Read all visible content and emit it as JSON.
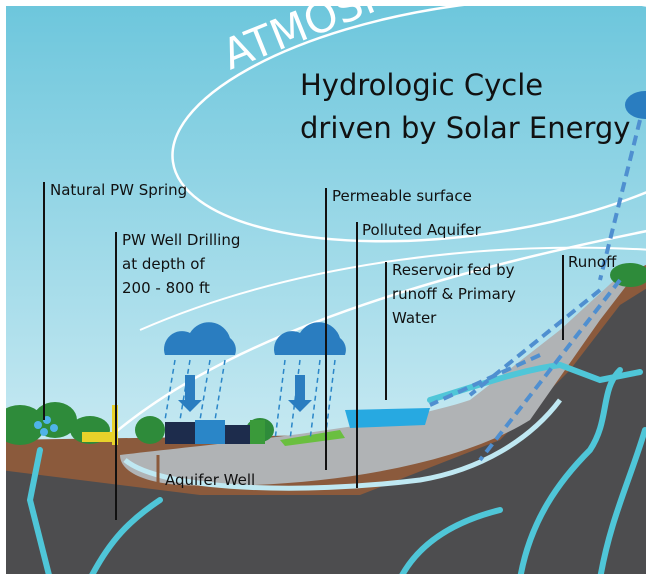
{
  "atmosphere": "ATMOSPH",
  "title": {
    "lines": [
      "Hydrologic Cycle",
      "driven by Solar Energy"
    ]
  },
  "labels": [
    {
      "lines": [
        "Natural PW Spring"
      ]
    },
    {
      "lines": [
        "PW Well Drilling",
        "at depth of",
        "200 - 800 ft"
      ]
    },
    {
      "lines": [
        "Permeable surface"
      ]
    },
    {
      "lines": [
        "Polluted Aquifer"
      ]
    },
    {
      "lines": [
        "Reservoir fed by",
        "runoff & Primary",
        "Water"
      ]
    },
    {
      "lines": [
        "Runoff"
      ]
    },
    {
      "lines": [
        "Aquifer Well"
      ]
    }
  ]
}
